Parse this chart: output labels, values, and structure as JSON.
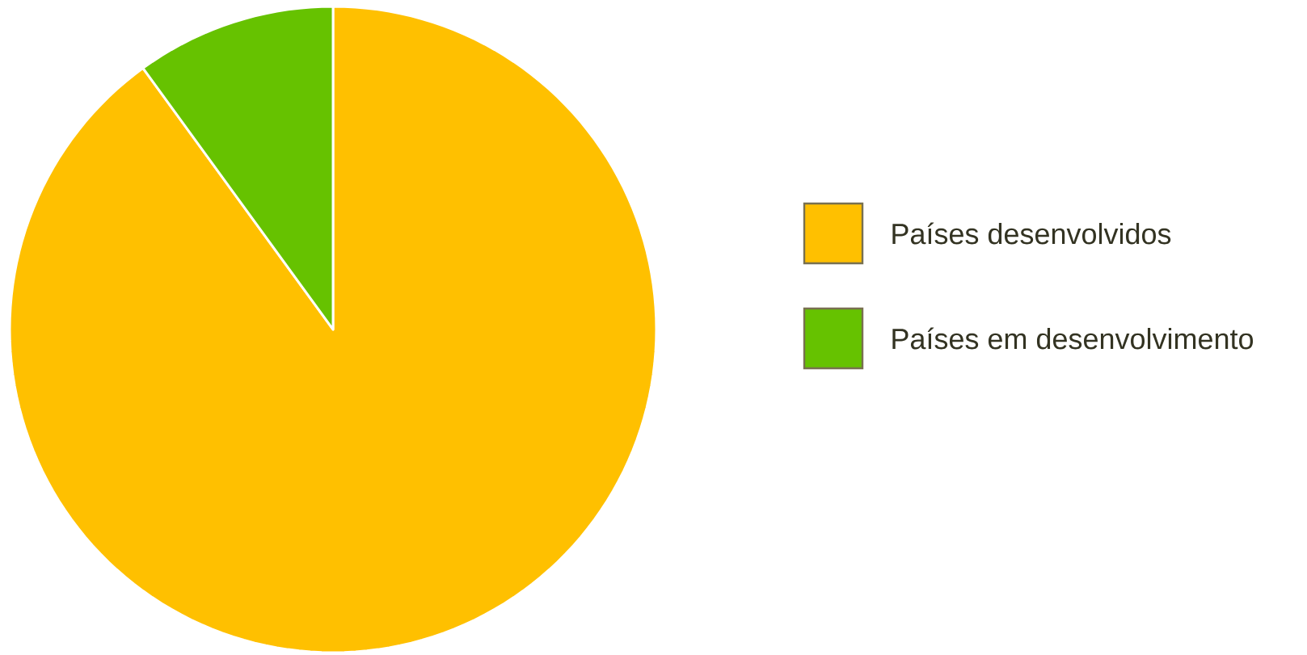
{
  "chart_data": {
    "type": "pie",
    "categories": [
      "Países desenvolvidos",
      "Países em desenvolvimento"
    ],
    "values": [
      90,
      10
    ],
    "colors": [
      "#ffc000",
      "#66c200"
    ],
    "legend": "right"
  }
}
